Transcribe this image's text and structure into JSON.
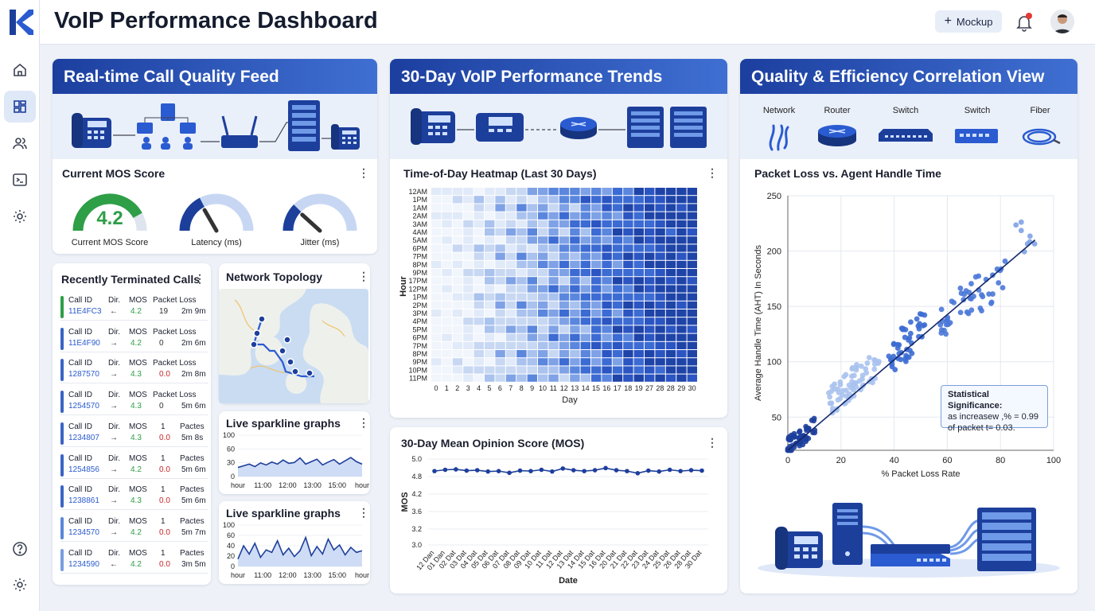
{
  "app": {
    "title": "VoIP Performance Dashboard",
    "mockup_label": "Mockup",
    "notification_dot_color": "#e53935"
  },
  "sidebar": {
    "items": [
      "home-icon",
      "dashboard-icon",
      "users-icon",
      "terminal-icon",
      "settings-icon"
    ],
    "bottom": [
      "help-icon",
      "settings-icon"
    ]
  },
  "feed": {
    "title": "Real-time Call Quality Feed",
    "mos_card_title": "Current MOS Score",
    "mos_value": "4.2",
    "gauges": [
      {
        "label": "Current MOS Score",
        "level": 0.84,
        "color": "#2e9e47"
      },
      {
        "label": "Latency (ms)",
        "level": 0.35,
        "color": "#1d3f9c"
      },
      {
        "label": "Jitter (ms)",
        "level": 0.25,
        "color": "#1d3f9c"
      }
    ]
  },
  "calls": {
    "title": "Recently Terminated Calls",
    "rows": [
      {
        "h1": "Call ID",
        "h2": "Dir.",
        "h3": "MOS",
        "h4": "Packet Loss",
        "id": "11E4FC3",
        "dir": "←",
        "mos": "4.2",
        "loss": "19",
        "dur": "2m 9m",
        "bar": "#2e9e47",
        "mos_color": "#2e9e47",
        "loss_color": "#333"
      },
      {
        "h1": "Call ID",
        "h2": "Dir.",
        "h3": "MOS",
        "h4": "Packet Loss",
        "id": "11E4F90",
        "dir": "→",
        "mos": "4.2",
        "loss": "0",
        "dur": "2m 6m",
        "bar": "#3a64c4",
        "mos_color": "#2e9e47",
        "loss_color": "#333"
      },
      {
        "h1": "Call ID",
        "h2": "Dir.",
        "h3": "MOS",
        "h4": "Packet Loss",
        "id": "1287570",
        "dir": "→",
        "mos": "4.3",
        "loss": "0.0",
        "dur": "2m 8m",
        "bar": "#3a64c4",
        "mos_color": "#2e9e47",
        "loss_color": "#c62828"
      },
      {
        "h1": "Call ID",
        "h2": "Dir.",
        "h3": "MOS",
        "h4": "Packet Loss",
        "id": "1254570",
        "dir": "→",
        "mos": "4.3",
        "loss": "0",
        "dur": "5m 6m",
        "bar": "#3a64c4",
        "mos_color": "#2e9e47",
        "loss_color": "#333"
      },
      {
        "h1": "Call ID",
        "h2": "Dir.",
        "h3": "MOS",
        "h4": "1",
        "h5": "Pactes",
        "id": "1234807",
        "dir": "→",
        "mos": "4.3",
        "loss": "0.0",
        "dur": "5m 8s",
        "bar": "#3a64c4",
        "mos_color": "#2e9e47",
        "loss_color": "#c62828"
      },
      {
        "h1": "Call ID",
        "h2": "Dir.",
        "h3": "MOS",
        "h4": "1",
        "h5": "Pactes",
        "id": "1254856",
        "dir": "→",
        "mos": "4.2",
        "loss": "0.0",
        "dur": "5m 6m",
        "bar": "#3a64c4",
        "mos_color": "#2e9e47",
        "loss_color": "#c62828"
      },
      {
        "h1": "Call ID",
        "h2": "Dir.",
        "h3": "MOS",
        "h4": "1",
        "h5": "Pactes",
        "id": "1238861",
        "dir": "→",
        "mos": "4.3",
        "loss": "0.0",
        "dur": "5m 6m",
        "bar": "#3a64c4",
        "mos_color": "#2e9e47",
        "loss_color": "#c62828"
      },
      {
        "h1": "Call ID",
        "h2": "Dir.",
        "h3": "MOS",
        "h4": "1",
        "h5": "Pactes",
        "id": "1234570",
        "dir": "→",
        "mos": "4.2",
        "loss": "0.0",
        "dur": "5m 7m",
        "bar": "#5b86d6",
        "mos_color": "#2e9e47",
        "loss_color": "#c62828"
      },
      {
        "h1": "Call ID",
        "h2": "Dir.",
        "h3": "MOS",
        "h4": "1",
        "h5": "Pactes",
        "id": "1234590",
        "dir": "←",
        "mos": "4.2",
        "loss": "0.0",
        "dur": "3m 5m",
        "bar": "#7a9de0",
        "mos_color": "#2e9e47",
        "loss_color": "#c62828"
      }
    ]
  },
  "topology": {
    "title": "Network Topology"
  },
  "sparklines": [
    {
      "title": "Live sparkline graphs",
      "yticks": [
        "100",
        "60",
        "30",
        "0"
      ],
      "xticks": [
        "hour",
        "11:00",
        "12:00",
        "13:00",
        "15:00",
        "hour"
      ],
      "values": [
        22,
        26,
        30,
        24,
        33,
        28,
        35,
        30,
        40,
        32,
        34,
        45,
        30,
        36,
        42,
        28,
        35,
        41,
        30,
        38,
        46,
        36,
        30
      ]
    },
    {
      "title": "Live sparkline graphs",
      "yticks": [
        "100",
        "60",
        "40",
        "20",
        "0"
      ],
      "xticks": [
        "hour",
        "11:00",
        "12:00",
        "13:00",
        "15:00",
        "hour"
      ],
      "values": [
        18,
        50,
        30,
        56,
        22,
        40,
        34,
        62,
        28,
        44,
        24,
        38,
        70,
        26,
        48,
        30,
        66,
        40,
        52,
        28,
        46,
        34,
        38
      ]
    }
  ],
  "trends": {
    "title": "30-Day VoIP Performance Trends"
  },
  "heatmap": {
    "title": "Time-of-Day Heatmap (Last 30 Days)",
    "ylabel": "Hour",
    "xlabel": "Day",
    "rows": [
      "12AM",
      "1PM",
      "1AM",
      "2AM",
      "3AM",
      "4AM",
      "5AM",
      "6PM",
      "7PM",
      "8PM",
      "9PM",
      "17PM",
      "12PM",
      "1PM",
      "2PM",
      "3PM",
      "4PM",
      "5PM",
      "6PM",
      "7PM",
      "8PM",
      "9PM",
      "10PM",
      "11PM"
    ],
    "cols": [
      "0",
      "1",
      "2",
      "3",
      "4",
      "5",
      "6",
      "7",
      "8",
      "9",
      "10",
      "11",
      "12",
      "13",
      "14",
      "15",
      "16",
      "17",
      "18",
      "19",
      "27",
      "28",
      "28",
      "29",
      "30"
    ]
  },
  "mos_chart": {
    "title": "30-Day Mean Opinion Score (MOS)",
    "ylabel": "MOS",
    "xlabel": "Date",
    "yticks": [
      "5.0",
      "4.8",
      "4.2",
      "3.6",
      "3.2",
      "3.0"
    ],
    "xticks": [
      "12 Dan",
      "01 Dan",
      "02 Dat",
      "03 Dat",
      "04 Dat",
      "05 Dat",
      "06 Dat",
      "07 Dat",
      "08 Dat",
      "09 Dat",
      "10 Dat",
      "11 Dat",
      "12 Dat",
      "13 Dat",
      "14 Dat",
      "15 Dat",
      "16 Dat",
      "20 Dat",
      "21 Dat",
      "22 Dat",
      "23 Dat",
      "24 Dat",
      "25 Dat",
      "26 Dat",
      "28 Dat",
      "30 Dat"
    ],
    "values": [
      4.72,
      4.75,
      4.76,
      4.73,
      4.74,
      4.71,
      4.72,
      4.68,
      4.73,
      4.72,
      4.75,
      4.71,
      4.78,
      4.74,
      4.72,
      4.74,
      4.79,
      4.74,
      4.72,
      4.67,
      4.73,
      4.71,
      4.75,
      4.72,
      4.74,
      4.73
    ]
  },
  "correlation": {
    "title": "Quality & Efficiency Correlation View",
    "devices": [
      "Network",
      "Router",
      "Switch",
      "Switch",
      "Fiber"
    ],
    "scatter_title": "Packet Loss vs. Agent Handle Time",
    "xlabel": "% Packet Loss Rate",
    "ylabel": "Average Handle Time (AHT) In Seconds",
    "xticks": [
      "0",
      "20",
      "40",
      "60",
      "80",
      "100"
    ],
    "yticks": [
      "250",
      "200",
      "150",
      "100",
      "50"
    ],
    "annotation": {
      "title": "Statistical Significance:",
      "line1": "as increasew ,% = 0.99",
      "line2": "of packet t= 0.03."
    }
  },
  "chart_data": [
    {
      "type": "line",
      "title": "30-Day Mean Opinion Score (MOS)",
      "xlabel": "Date",
      "ylabel": "MOS",
      "ylim": [
        3.0,
        5.0
      ],
      "x": [
        "12 Dan",
        "01 Dan",
        "02 Dat",
        "03 Dat",
        "04 Dat",
        "05 Dat",
        "06 Dat",
        "07 Dat",
        "08 Dat",
        "09 Dat",
        "10 Dat",
        "11 Dat",
        "12 Dat",
        "13 Dat",
        "14 Dat",
        "15 Dat",
        "16 Dat",
        "20 Dat",
        "21 Dat",
        "22 Dat",
        "23 Dat",
        "24 Dat",
        "25 Dat",
        "26 Dat",
        "28 Dat",
        "30 Dat"
      ],
      "values": [
        4.72,
        4.75,
        4.76,
        4.73,
        4.74,
        4.71,
        4.72,
        4.68,
        4.73,
        4.72,
        4.75,
        4.71,
        4.78,
        4.74,
        4.72,
        4.74,
        4.79,
        4.74,
        4.72,
        4.67,
        4.73,
        4.71,
        4.75,
        4.72,
        4.74,
        4.73
      ]
    },
    {
      "type": "scatter",
      "title": "Packet Loss vs. Agent Handle Time",
      "xlabel": "% Packet Loss Rate",
      "ylabel": "Average Handle Time (AHT) In Seconds",
      "xlim": [
        0,
        100
      ],
      "ylim": [
        20,
        250
      ],
      "trendline": [
        [
          0,
          20
        ],
        [
          93,
          210
        ]
      ]
    },
    {
      "type": "heatmap",
      "title": "Time-of-Day Heatmap (Last 30 Days)",
      "xlabel": "Day",
      "ylabel": "Hour",
      "intensity": "increases from left (light) to right (dark blue)"
    }
  ]
}
